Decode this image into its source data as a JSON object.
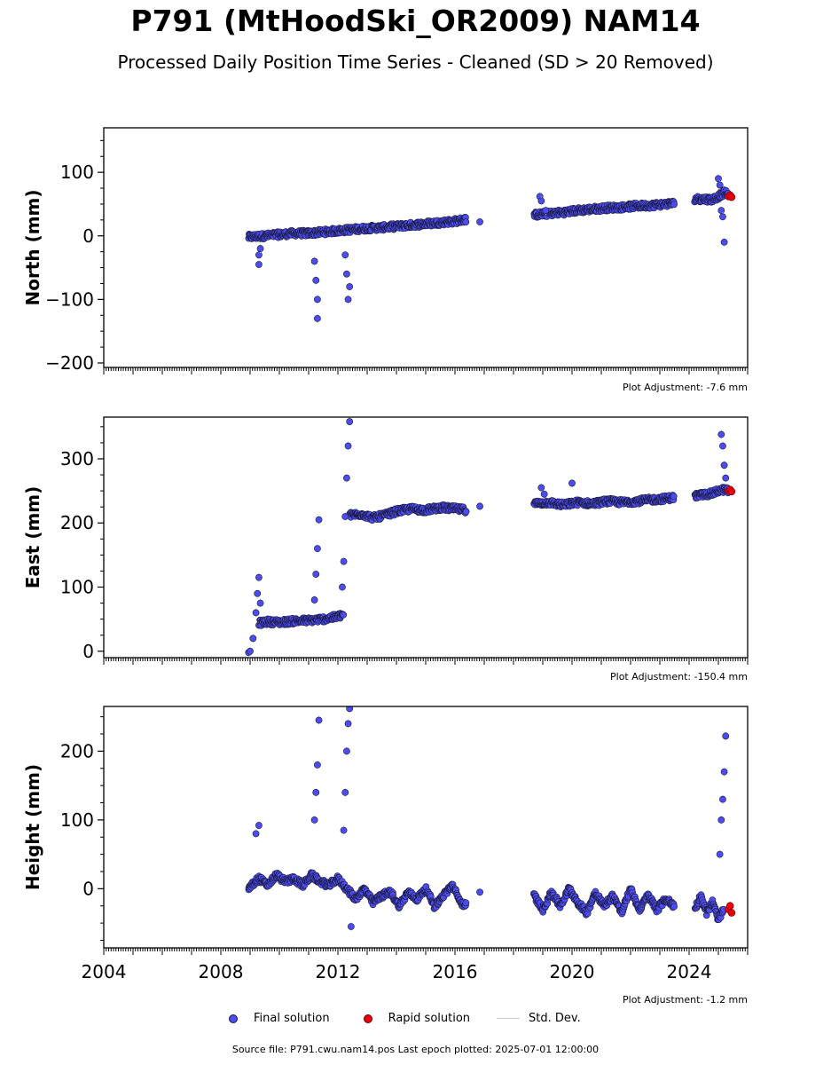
{
  "title": "P791 (MtHoodSki_OR2009) NAM14",
  "subtitle": "Processed Daily Position Time Series - Cleaned (SD > 20 Removed)",
  "colors": {
    "final": "#4c4cf0",
    "final_edge": "#1a1a40",
    "rapid": "#e8000b",
    "stddev": "#cfcfcf",
    "axis": "#000000"
  },
  "legend": {
    "final": "Final solution",
    "rapid": "Rapid solution",
    "stddev": "Std. Dev."
  },
  "footer": "Source file: P791.cwu.nam14.pos  Last epoch plotted: 2025-07-01 12:00:00",
  "chart_data": [
    {
      "type": "scatter",
      "ylabel": "North (mm)",
      "xlim": [
        2004,
        2026
      ],
      "ylim": [
        -207,
        170
      ],
      "yticks": [
        -200,
        -100,
        0,
        100
      ],
      "xticks": [
        2004,
        2008,
        2012,
        2016,
        2020,
        2024
      ],
      "adjustment": "Plot Adjustment: -7.6 mm",
      "series": [
        {
          "name": "Final solution",
          "segments": [
            {
              "x": [
                2008.95,
                2009.5,
                2010.0,
                2010.5,
                2011.0,
                2011.5,
                2012.0,
                2012.5,
                2013.0,
                2013.5,
                2014.0,
                2014.5,
                2015.0,
                2015.5,
                2016.0,
                2016.4
              ],
              "y": [
                -2,
                0,
                2,
                4,
                4,
                6,
                8,
                10,
                12,
                13,
                15,
                17,
                19,
                21,
                23,
                26
              ]
            },
            {
              "x": [
                2018.7,
                2019.2,
                2019.7,
                2020.2,
                2020.7,
                2021.2,
                2021.7,
                2022.2,
                2022.7,
                2023.2,
                2023.5
              ],
              "y": [
                33,
                35,
                37,
                40,
                42,
                44,
                45,
                47,
                48,
                50,
                51
              ]
            },
            {
              "x": [
                2024.2,
                2024.5,
                2024.8,
                2025.0,
                2025.2,
                2025.35
              ],
              "y": [
                58,
                58,
                57,
                62,
                68,
                65
              ]
            }
          ],
          "outliers": {
            "x": [
              2009.3,
              2009.3,
              2009.35,
              2011.2,
              2011.25,
              2011.3,
              2011.3,
              2012.25,
              2012.3,
              2012.35,
              2012.4,
              2016.85,
              2018.9,
              2018.95,
              2019.1,
              2025.0,
              2025.05,
              2025.1,
              2025.15,
              2025.2
            ],
            "y": [
              -45,
              -30,
              -20,
              -40,
              -70,
              -100,
              -130,
              -30,
              -60,
              -100,
              -80,
              22,
              62,
              55,
              40,
              90,
              80,
              40,
              30,
              -10
            ]
          }
        },
        {
          "name": "Rapid solution",
          "x": [
            2025.35,
            2025.4,
            2025.45
          ],
          "y": [
            62,
            64,
            61
          ]
        }
      ]
    },
    {
      "type": "scatter",
      "ylabel": "East (mm)",
      "xlim": [
        2004,
        2026
      ],
      "ylim": [
        -10,
        365
      ],
      "yticks": [
        0,
        100,
        200,
        300
      ],
      "xticks": [
        2004,
        2008,
        2012,
        2016,
        2020,
        2024
      ],
      "adjustment": "Plot Adjustment: -150.4 mm",
      "series": [
        {
          "name": "Final solution",
          "segments": [
            {
              "x": [
                2009.3,
                2009.6,
                2010.0,
                2010.5,
                2011.0,
                2011.5,
                2012.0,
                2012.2
              ],
              "y": [
                44,
                46,
                45,
                47,
                48,
                50,
                54,
                58
              ]
            },
            {
              "x": [
                2012.4,
                2012.8,
                2013.2,
                2013.6,
                2014.0,
                2014.5,
                2015.0,
                2015.5,
                2016.0,
                2016.4
              ],
              "y": [
                212,
                214,
                208,
                212,
                218,
                222,
                220,
                224,
                222,
                220
              ]
            },
            {
              "x": [
                2018.7,
                2019.2,
                2019.7,
                2020.2,
                2020.7,
                2021.2,
                2021.7,
                2022.2,
                2022.7,
                2023.2,
                2023.5
              ],
              "y": [
                230,
                232,
                228,
                232,
                230,
                234,
                232,
                234,
                236,
                238,
                240
              ]
            },
            {
              "x": [
                2024.2,
                2024.5,
                2024.8,
                2025.0,
                2025.2,
                2025.35
              ],
              "y": [
                242,
                244,
                246,
                250,
                252,
                250
              ]
            }
          ],
          "outliers": {
            "x": [
              2008.95,
              2009.0,
              2009.1,
              2009.2,
              2009.25,
              2009.3,
              2009.35,
              2011.2,
              2011.25,
              2011.3,
              2011.35,
              2012.15,
              2012.2,
              2012.25,
              2012.3,
              2012.35,
              2012.4,
              2016.85,
              2018.95,
              2019.05,
              2020.0,
              2025.1,
              2025.15,
              2025.2,
              2025.25
            ],
            "y": [
              -2,
              0,
              20,
              60,
              90,
              115,
              75,
              80,
              120,
              160,
              205,
              100,
              140,
              210,
              270,
              320,
              358,
              226,
              255,
              245,
              262,
              338,
              320,
              290,
              270
            ]
          }
        },
        {
          "name": "Rapid solution",
          "x": [
            2025.35,
            2025.4,
            2025.45
          ],
          "y": [
            250,
            252,
            249
          ]
        }
      ]
    },
    {
      "type": "scatter",
      "ylabel": "Height (mm)",
      "xlim": [
        2004,
        2026
      ],
      "ylim": [
        -86,
        265
      ],
      "yticks": [
        0,
        100,
        200
      ],
      "xticks": [
        2004,
        2008,
        2012,
        2016,
        2020,
        2024
      ],
      "xticklabels": [
        "2004",
        "2008",
        "2012",
        "2016",
        "2020",
        "2024"
      ],
      "adjustment": "Plot Adjustment: -1.2 mm",
      "series": [
        {
          "name": "Final solution",
          "segments": [
            {
              "x": [
                2008.95,
                2009.3,
                2009.6,
                2009.9,
                2010.2,
                2010.5,
                2010.8,
                2011.1,
                2011.4,
                2011.7,
                2012.0,
                2012.3,
                2012.6,
                2012.9,
                2013.2,
                2013.5,
                2013.8,
                2014.1,
                2014.4,
                2014.7,
                2015.0,
                2015.3,
                2015.6,
                2015.9,
                2016.2,
                2016.4
              ],
              "y": [
                0,
                15,
                5,
                20,
                10,
                15,
                5,
                20,
                10,
                5,
                15,
                0,
                -15,
                0,
                -20,
                -10,
                -5,
                -25,
                -5,
                -15,
                0,
                -25,
                -10,
                5,
                -20,
                -25
              ]
            },
            {
              "x": [
                2018.7,
                2019.0,
                2019.3,
                2019.6,
                2019.9,
                2020.2,
                2020.5,
                2020.8,
                2021.1,
                2021.4,
                2021.7,
                2022.0,
                2022.3,
                2022.6,
                2022.9,
                2023.2,
                2023.5
              ],
              "y": [
                -10,
                -30,
                -5,
                -25,
                0,
                -20,
                -35,
                -5,
                -25,
                -10,
                -35,
                0,
                -30,
                -10,
                -30,
                -15,
                -25
              ]
            },
            {
              "x": [
                2024.2,
                2024.4,
                2024.6,
                2024.8,
                2025.0,
                2025.2
              ],
              "y": [
                -30,
                -10,
                -35,
                -20,
                -45,
                -30
              ]
            }
          ],
          "outliers": {
            "x": [
              2009.2,
              2009.3,
              2011.2,
              2011.25,
              2011.3,
              2011.35,
              2012.2,
              2012.25,
              2012.3,
              2012.35,
              2012.4,
              2012.45,
              2016.85,
              2025.05,
              2025.1,
              2025.15,
              2025.2,
              2025.25
            ],
            "y": [
              80,
              92,
              100,
              140,
              180,
              245,
              85,
              140,
              200,
              240,
              262,
              -55,
              -5,
              50,
              100,
              130,
              170,
              222
            ]
          }
        },
        {
          "name": "Rapid solution",
          "x": [
            2025.35,
            2025.4,
            2025.45
          ],
          "y": [
            -30,
            -25,
            -35
          ]
        }
      ]
    }
  ]
}
